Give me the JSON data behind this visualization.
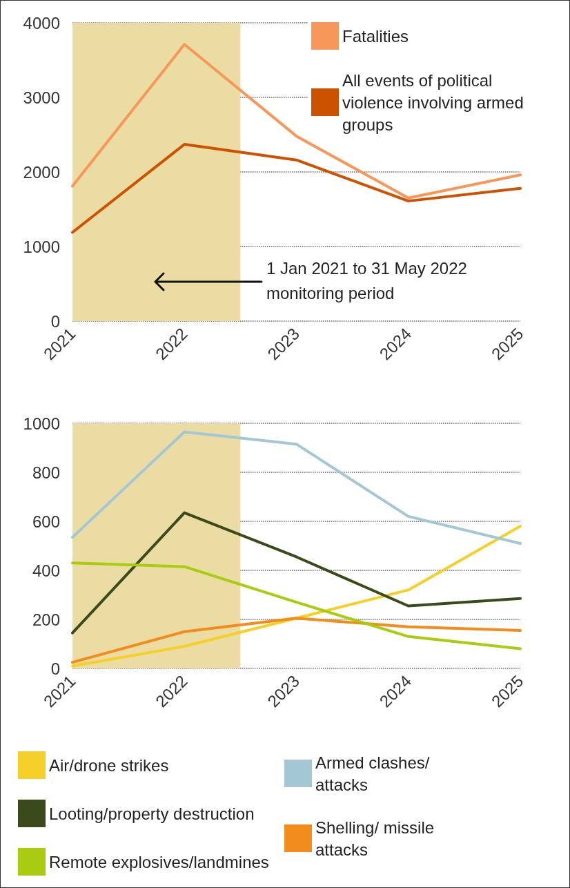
{
  "chart_data": [
    {
      "type": "line",
      "x": [
        2021,
        2022,
        2023,
        2024,
        2025
      ],
      "xlim": [
        2021,
        2025
      ],
      "xticks": [
        2021,
        2022,
        2023,
        2024,
        2025
      ],
      "ylim": [
        0,
        4000
      ],
      "yticks": [
        0,
        1000,
        2000,
        3000,
        4000
      ],
      "grid": "y",
      "legend": "top right",
      "marker": "none",
      "line_style": "solid",
      "series": [
        {
          "name": "Fatalities",
          "color": "#f7975a",
          "values": [
            1810,
            3710,
            2480,
            1650,
            1960
          ]
        },
        {
          "name": "All events of political violence involving armed groups",
          "color": "#cc5200",
          "values": [
            1190,
            2370,
            2160,
            1610,
            1780
          ]
        }
      ],
      "bands": [
        {
          "axis": "x",
          "from": 2021,
          "to": 2022.5,
          "color": "#ebdca3"
        }
      ],
      "annotations": [
        "1 Jan 2021 to 31 May 2022 monitoring period"
      ]
    },
    {
      "type": "line",
      "x": [
        2021,
        2022,
        2023,
        2024,
        2025
      ],
      "xlim": [
        2021,
        2025
      ],
      "xticks": [
        2021,
        2022,
        2023,
        2024,
        2025
      ],
      "ylim": [
        0,
        1000
      ],
      "yticks": [
        0,
        200,
        400,
        600,
        800,
        1000
      ],
      "grid": "y",
      "legend": "bottom",
      "marker": "none",
      "line_style": "solid",
      "series": [
        {
          "name": "Air/drone strikes",
          "color": "#f5cf2a",
          "values": [
            10,
            90,
            205,
            320,
            580
          ]
        },
        {
          "name": "Armed clashes/attacks",
          "color": "#a3c8d4",
          "values": [
            535,
            965,
            915,
            620,
            510
          ]
        },
        {
          "name": "Looting/property destruction",
          "color": "#3a4a1a",
          "values": [
            145,
            635,
            455,
            255,
            285
          ]
        },
        {
          "name": "Shelling/ missile attacks",
          "color": "#f28c1c",
          "values": [
            25,
            150,
            205,
            170,
            155
          ]
        },
        {
          "name": "Remote explosives/landmines",
          "color": "#a8cc10",
          "values": [
            430,
            415,
            270,
            130,
            80
          ]
        }
      ],
      "bands": [
        {
          "axis": "x",
          "from": 2021,
          "to": 2022.5,
          "color": "#ebdca3"
        }
      ]
    }
  ]
}
